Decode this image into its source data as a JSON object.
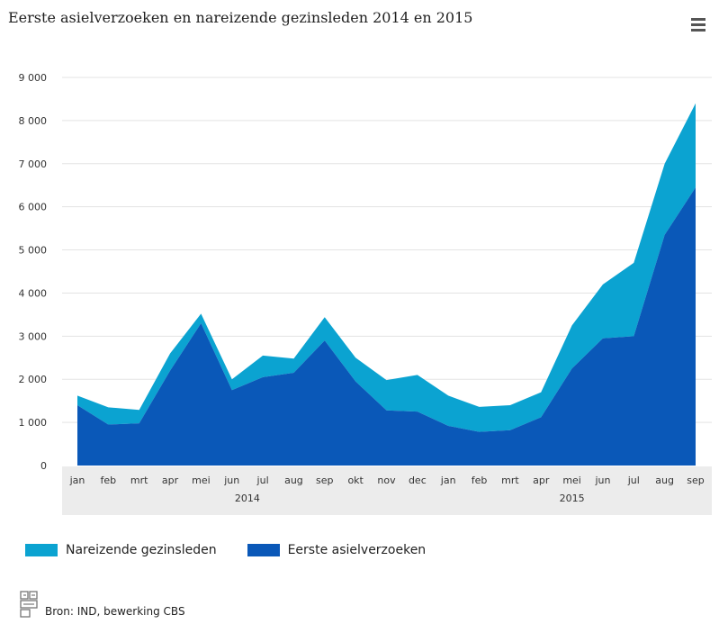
{
  "header": {
    "title": "Eerste asielverzoeken en nareizende gezinsleden 2014 en 2015",
    "menu_icon": "hamburger-menu-icon"
  },
  "footer": {
    "source_text": "Bron: IND, bewerking CBS",
    "logo_icon": "cbs-logo-icon"
  },
  "colors": {
    "eerste": "#0a58b8",
    "nareizende": "#0ba3d1",
    "grid": "#e3e3e3",
    "axis_band": "#ececec"
  },
  "chart_data": {
    "type": "area",
    "stacked": true,
    "title": "Eerste asielverzoeken en nareizende gezinsleden 2014 en 2015",
    "categories": [
      "jan",
      "feb",
      "mrt",
      "apr",
      "mei",
      "jun",
      "jul",
      "aug",
      "sep",
      "okt",
      "nov",
      "dec",
      "jan",
      "feb",
      "mrt",
      "apr",
      "mei",
      "jun",
      "jul",
      "aug",
      "sep"
    ],
    "year_labels": [
      {
        "label": "2014",
        "start_index": 0,
        "end_index": 11
      },
      {
        "label": "2015",
        "start_index": 12,
        "end_index": 20
      }
    ],
    "ylim": [
      0,
      9000
    ],
    "yticks": [
      0,
      1000,
      2000,
      3000,
      4000,
      5000,
      6000,
      7000,
      8000,
      9000
    ],
    "ytick_labels": [
      "0",
      "1 000",
      "2 000",
      "3 000",
      "4 000",
      "5 000",
      "6 000",
      "7 000",
      "8 000",
      "9 000"
    ],
    "grid": true,
    "legend_position": "bottom-left",
    "series": [
      {
        "name": "Eerste asielverzoeken",
        "color": "#0a58b8",
        "values": [
          1400,
          950,
          980,
          2200,
          3300,
          1750,
          2050,
          2150,
          2900,
          1950,
          1280,
          1250,
          920,
          780,
          820,
          1120,
          2250,
          2950,
          3000,
          5350,
          6450
        ]
      },
      {
        "name": "Nareizende gezinsleden",
        "color": "#0ba3d1",
        "values": [
          220,
          400,
          310,
          400,
          220,
          250,
          500,
          330,
          540,
          550,
          700,
          850,
          700,
          580,
          580,
          580,
          1000,
          1250,
          1700,
          1650,
          1950
        ]
      }
    ]
  }
}
